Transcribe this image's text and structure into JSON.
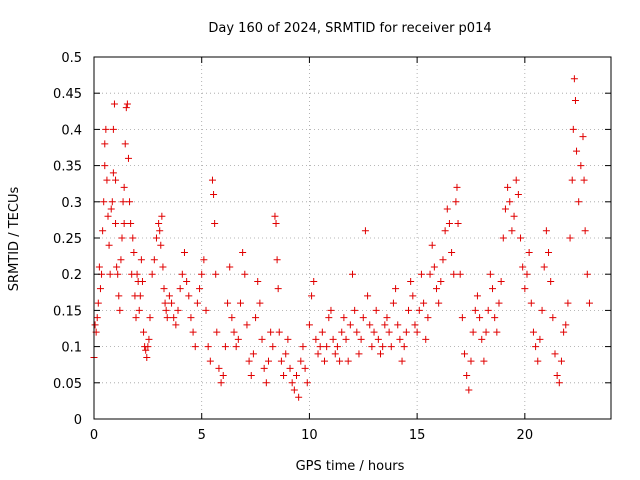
{
  "chart_data": {
    "type": "scatter",
    "title": "Day 160 of 2024, SRMTID for receiver p014",
    "xlabel": "GPS time / hours",
    "ylabel": "SRMTID / TECUs",
    "xlim": [
      0,
      24
    ],
    "ylim": [
      0,
      0.5
    ],
    "xticks": [
      0,
      5,
      10,
      15,
      20
    ],
    "xtick_labels": [
      "0",
      "5",
      "10",
      "15",
      "20"
    ],
    "yticks": [
      0,
      0.05,
      0.1,
      0.15,
      0.2,
      0.25,
      0.3,
      0.35,
      0.4,
      0.45,
      0.5
    ],
    "ytick_labels": [
      "0",
      "0.05",
      "0.1",
      "0.15",
      "0.2",
      "0.25",
      "0.3",
      "0.35",
      "0.4",
      "0.45",
      "0.5"
    ],
    "grid": true,
    "marker": "+",
    "colors": {
      "marker": "#e00000",
      "grid": "#a0a0a0",
      "axis": "#000000"
    },
    "series": [
      {
        "name": "SRMTID",
        "points": [
          [
            0.0,
            0.085
          ],
          [
            0.05,
            0.13
          ],
          [
            0.1,
            0.12
          ],
          [
            0.15,
            0.14
          ],
          [
            0.2,
            0.16
          ],
          [
            0.25,
            0.21
          ],
          [
            0.3,
            0.18
          ],
          [
            0.35,
            0.2
          ],
          [
            0.4,
            0.26
          ],
          [
            0.45,
            0.3
          ],
          [
            0.5,
            0.35
          ],
          [
            0.5,
            0.38
          ],
          [
            0.55,
            0.4
          ],
          [
            0.6,
            0.33
          ],
          [
            0.65,
            0.28
          ],
          [
            0.7,
            0.24
          ],
          [
            0.75,
            0.2
          ],
          [
            0.8,
            0.29
          ],
          [
            0.85,
            0.3
          ],
          [
            0.9,
            0.34
          ],
          [
            0.9,
            0.4
          ],
          [
            0.95,
            0.435
          ],
          [
            1.0,
            0.33
          ],
          [
            1.0,
            0.27
          ],
          [
            1.05,
            0.21
          ],
          [
            1.1,
            0.2
          ],
          [
            1.15,
            0.17
          ],
          [
            1.2,
            0.15
          ],
          [
            1.25,
            0.22
          ],
          [
            1.3,
            0.25
          ],
          [
            1.35,
            0.3
          ],
          [
            1.4,
            0.27
          ],
          [
            1.4,
            0.32
          ],
          [
            1.45,
            0.38
          ],
          [
            1.5,
            0.43
          ],
          [
            1.55,
            0.435
          ],
          [
            1.6,
            0.36
          ],
          [
            1.65,
            0.3
          ],
          [
            1.7,
            0.27
          ],
          [
            1.75,
            0.2
          ],
          [
            1.8,
            0.25
          ],
          [
            1.85,
            0.23
          ],
          [
            1.9,
            0.17
          ],
          [
            1.95,
            0.14
          ],
          [
            2.0,
            0.2
          ],
          [
            2.05,
            0.19
          ],
          [
            2.1,
            0.15
          ],
          [
            2.15,
            0.17
          ],
          [
            2.2,
            0.22
          ],
          [
            2.25,
            0.19
          ],
          [
            2.3,
            0.12
          ],
          [
            2.35,
            0.1
          ],
          [
            2.4,
            0.095
          ],
          [
            2.45,
            0.085
          ],
          [
            2.5,
            0.1
          ],
          [
            2.55,
            0.11
          ],
          [
            2.6,
            0.14
          ],
          [
            2.7,
            0.2
          ],
          [
            2.8,
            0.22
          ],
          [
            2.9,
            0.25
          ],
          [
            3.0,
            0.27
          ],
          [
            3.05,
            0.26
          ],
          [
            3.1,
            0.24
          ],
          [
            3.15,
            0.28
          ],
          [
            3.2,
            0.21
          ],
          [
            3.25,
            0.18
          ],
          [
            3.3,
            0.16
          ],
          [
            3.35,
            0.15
          ],
          [
            3.4,
            0.14
          ],
          [
            3.5,
            0.17
          ],
          [
            3.6,
            0.16
          ],
          [
            3.7,
            0.14
          ],
          [
            3.8,
            0.13
          ],
          [
            3.9,
            0.15
          ],
          [
            4.0,
            0.18
          ],
          [
            4.1,
            0.2
          ],
          [
            4.2,
            0.23
          ],
          [
            4.3,
            0.19
          ],
          [
            4.4,
            0.17
          ],
          [
            4.5,
            0.14
          ],
          [
            4.6,
            0.12
          ],
          [
            4.7,
            0.1
          ],
          [
            4.8,
            0.16
          ],
          [
            4.9,
            0.18
          ],
          [
            5.0,
            0.2
          ],
          [
            5.1,
            0.22
          ],
          [
            5.2,
            0.15
          ],
          [
            5.3,
            0.1
          ],
          [
            5.4,
            0.08
          ],
          [
            5.5,
            0.33
          ],
          [
            5.55,
            0.31
          ],
          [
            5.6,
            0.27
          ],
          [
            5.65,
            0.2
          ],
          [
            5.7,
            0.12
          ],
          [
            5.8,
            0.07
          ],
          [
            5.9,
            0.05
          ],
          [
            6.0,
            0.06
          ],
          [
            6.1,
            0.1
          ],
          [
            6.2,
            0.16
          ],
          [
            6.3,
            0.21
          ],
          [
            6.4,
            0.14
          ],
          [
            6.5,
            0.12
          ],
          [
            6.6,
            0.1
          ],
          [
            6.7,
            0.11
          ],
          [
            6.8,
            0.16
          ],
          [
            6.9,
            0.23
          ],
          [
            7.0,
            0.2
          ],
          [
            7.1,
            0.13
          ],
          [
            7.2,
            0.08
          ],
          [
            7.3,
            0.06
          ],
          [
            7.4,
            0.09
          ],
          [
            7.5,
            0.14
          ],
          [
            7.6,
            0.19
          ],
          [
            7.7,
            0.16
          ],
          [
            7.8,
            0.11
          ],
          [
            7.9,
            0.07
          ],
          [
            8.0,
            0.05
          ],
          [
            8.1,
            0.08
          ],
          [
            8.2,
            0.12
          ],
          [
            8.3,
            0.1
          ],
          [
            8.4,
            0.28
          ],
          [
            8.45,
            0.27
          ],
          [
            8.5,
            0.22
          ],
          [
            8.55,
            0.18
          ],
          [
            8.6,
            0.12
          ],
          [
            8.7,
            0.08
          ],
          [
            8.8,
            0.06
          ],
          [
            8.9,
            0.09
          ],
          [
            9.0,
            0.11
          ],
          [
            9.1,
            0.07
          ],
          [
            9.2,
            0.05
          ],
          [
            9.3,
            0.04
          ],
          [
            9.4,
            0.06
          ],
          [
            9.5,
            0.03
          ],
          [
            9.6,
            0.08
          ],
          [
            9.7,
            0.1
          ],
          [
            9.8,
            0.07
          ],
          [
            9.9,
            0.05
          ],
          [
            10.0,
            0.13
          ],
          [
            10.1,
            0.17
          ],
          [
            10.2,
            0.19
          ],
          [
            10.3,
            0.11
          ],
          [
            10.4,
            0.09
          ],
          [
            10.5,
            0.1
          ],
          [
            10.6,
            0.12
          ],
          [
            10.7,
            0.08
          ],
          [
            10.8,
            0.1
          ],
          [
            10.9,
            0.14
          ],
          [
            11.0,
            0.15
          ],
          [
            11.1,
            0.11
          ],
          [
            11.2,
            0.09
          ],
          [
            11.3,
            0.1
          ],
          [
            11.4,
            0.08
          ],
          [
            11.5,
            0.12
          ],
          [
            11.6,
            0.14
          ],
          [
            11.7,
            0.11
          ],
          [
            11.8,
            0.08
          ],
          [
            11.9,
            0.13
          ],
          [
            12.0,
            0.2
          ],
          [
            12.1,
            0.15
          ],
          [
            12.2,
            0.12
          ],
          [
            12.3,
            0.09
          ],
          [
            12.4,
            0.11
          ],
          [
            12.5,
            0.14
          ],
          [
            12.6,
            0.26
          ],
          [
            12.7,
            0.17
          ],
          [
            12.8,
            0.13
          ],
          [
            12.9,
            0.1
          ],
          [
            13.0,
            0.12
          ],
          [
            13.1,
            0.15
          ],
          [
            13.2,
            0.11
          ],
          [
            13.3,
            0.09
          ],
          [
            13.4,
            0.1
          ],
          [
            13.5,
            0.13
          ],
          [
            13.6,
            0.14
          ],
          [
            13.7,
            0.12
          ],
          [
            13.8,
            0.1
          ],
          [
            13.9,
            0.16
          ],
          [
            14.0,
            0.18
          ],
          [
            14.1,
            0.13
          ],
          [
            14.2,
            0.11
          ],
          [
            14.3,
            0.08
          ],
          [
            14.4,
            0.1
          ],
          [
            14.5,
            0.12
          ],
          [
            14.6,
            0.15
          ],
          [
            14.7,
            0.19
          ],
          [
            14.8,
            0.17
          ],
          [
            14.9,
            0.13
          ],
          [
            15.0,
            0.12
          ],
          [
            15.1,
            0.15
          ],
          [
            15.2,
            0.2
          ],
          [
            15.3,
            0.16
          ],
          [
            15.4,
            0.11
          ],
          [
            15.5,
            0.14
          ],
          [
            15.6,
            0.2
          ],
          [
            15.7,
            0.24
          ],
          [
            15.8,
            0.21
          ],
          [
            15.9,
            0.18
          ],
          [
            16.0,
            0.16
          ],
          [
            16.1,
            0.19
          ],
          [
            16.2,
            0.22
          ],
          [
            16.3,
            0.26
          ],
          [
            16.4,
            0.29
          ],
          [
            16.5,
            0.27
          ],
          [
            16.6,
            0.23
          ],
          [
            16.7,
            0.2
          ],
          [
            16.8,
            0.3
          ],
          [
            16.85,
            0.32
          ],
          [
            16.9,
            0.27
          ],
          [
            17.0,
            0.2
          ],
          [
            17.1,
            0.14
          ],
          [
            17.2,
            0.09
          ],
          [
            17.3,
            0.06
          ],
          [
            17.4,
            0.04
          ],
          [
            17.5,
            0.08
          ],
          [
            17.6,
            0.12
          ],
          [
            17.7,
            0.15
          ],
          [
            17.8,
            0.17
          ],
          [
            17.9,
            0.14
          ],
          [
            18.0,
            0.11
          ],
          [
            18.1,
            0.08
          ],
          [
            18.2,
            0.12
          ],
          [
            18.3,
            0.15
          ],
          [
            18.4,
            0.2
          ],
          [
            18.5,
            0.18
          ],
          [
            18.6,
            0.14
          ],
          [
            18.7,
            0.12
          ],
          [
            18.8,
            0.16
          ],
          [
            18.9,
            0.19
          ],
          [
            19.0,
            0.25
          ],
          [
            19.1,
            0.29
          ],
          [
            19.2,
            0.32
          ],
          [
            19.3,
            0.3
          ],
          [
            19.4,
            0.26
          ],
          [
            19.5,
            0.28
          ],
          [
            19.6,
            0.33
          ],
          [
            19.7,
            0.31
          ],
          [
            19.8,
            0.25
          ],
          [
            19.9,
            0.21
          ],
          [
            20.0,
            0.18
          ],
          [
            20.1,
            0.2
          ],
          [
            20.2,
            0.23
          ],
          [
            20.3,
            0.16
          ],
          [
            20.4,
            0.12
          ],
          [
            20.5,
            0.1
          ],
          [
            20.6,
            0.08
          ],
          [
            20.7,
            0.11
          ],
          [
            20.8,
            0.15
          ],
          [
            20.9,
            0.21
          ],
          [
            21.0,
            0.26
          ],
          [
            21.1,
            0.23
          ],
          [
            21.2,
            0.19
          ],
          [
            21.3,
            0.14
          ],
          [
            21.4,
            0.09
          ],
          [
            21.5,
            0.06
          ],
          [
            21.6,
            0.05
          ],
          [
            21.7,
            0.08
          ],
          [
            21.8,
            0.12
          ],
          [
            21.9,
            0.13
          ],
          [
            22.0,
            0.16
          ],
          [
            22.1,
            0.25
          ],
          [
            22.2,
            0.33
          ],
          [
            22.25,
            0.4
          ],
          [
            22.3,
            0.47
          ],
          [
            22.35,
            0.44
          ],
          [
            22.4,
            0.37
          ],
          [
            22.5,
            0.3
          ],
          [
            22.6,
            0.35
          ],
          [
            22.7,
            0.39
          ],
          [
            22.75,
            0.33
          ],
          [
            22.8,
            0.26
          ],
          [
            22.9,
            0.2
          ],
          [
            23.0,
            0.16
          ]
        ]
      }
    ]
  }
}
